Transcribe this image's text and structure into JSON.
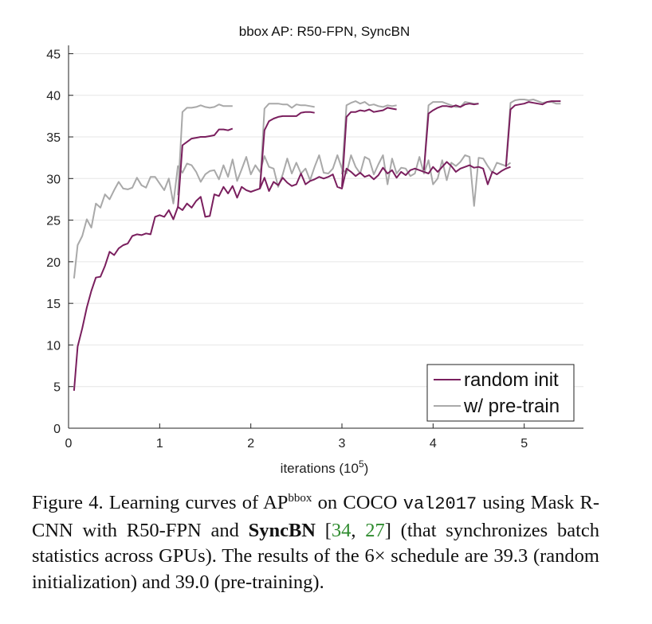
{
  "chart_data": {
    "type": "line",
    "title": "bbox AP: R50-FPN, SyncBN",
    "xlabel": "iterations (10",
    "xlabel_exp": "5",
    "xlabel_close": ")",
    "xlim": [
      0,
      5.65
    ],
    "ylim": [
      0,
      46
    ],
    "xticks": [
      0,
      1,
      2,
      3,
      4,
      5
    ],
    "yticks": [
      0,
      5,
      10,
      15,
      20,
      25,
      30,
      35,
      40,
      45
    ],
    "grid": "horizontal",
    "legend_position": "bottom-right",
    "series": [
      {
        "name": "random init",
        "color": "#7a1f5e",
        "segments": [
          {
            "x": [
              0.06,
              0.1,
              0.15,
              0.2,
              0.25,
              0.3,
              0.35,
              0.4,
              0.45,
              0.5,
              0.55,
              0.6,
              0.65,
              0.7,
              0.75,
              0.8,
              0.85,
              0.9,
              0.95,
              1.0,
              1.05,
              1.1,
              1.15,
              1.2,
              1.25,
              1.3,
              1.35,
              1.4,
              1.45,
              1.5,
              1.55,
              1.6,
              1.65,
              1.7,
              1.75,
              1.8,
              1.85,
              1.9,
              1.95,
              2.0,
              2.05,
              2.1,
              2.15,
              2.2,
              2.25,
              2.3,
              2.35,
              2.4,
              2.45,
              2.5,
              2.55,
              2.6,
              2.65,
              2.7,
              2.75,
              2.8,
              2.85,
              2.9,
              2.95,
              3.0,
              3.05,
              3.1,
              3.15,
              3.2,
              3.25,
              3.3,
              3.35,
              3.4,
              3.45,
              3.5,
              3.55,
              3.6,
              3.65,
              3.7,
              3.75,
              3.8,
              3.85,
              3.9,
              3.95,
              4.0,
              4.05,
              4.1,
              4.15,
              4.2,
              4.25,
              4.3,
              4.35,
              4.4,
              4.45,
              4.5,
              4.55,
              4.6,
              4.65,
              4.7,
              4.75,
              4.8,
              4.85
            ],
            "y": [
              4.5,
              9.8,
              12.0,
              14.5,
              16.5,
              18.1,
              18.2,
              19.5,
              21.2,
              20.8,
              21.6,
              22.0,
              22.2,
              23.1,
              23.3,
              23.2,
              23.4,
              23.3,
              25.4,
              25.6,
              25.4,
              26.2,
              25.1,
              26.6,
              26.2,
              27.0,
              26.5,
              27.3,
              27.8,
              25.4,
              25.5,
              28.1,
              27.9,
              29.0,
              28.2,
              29.1,
              27.7,
              29.0,
              28.6,
              28.4,
              28.6,
              28.8,
              30.1,
              28.5,
              29.6,
              29.2,
              30.1,
              29.5,
              29.1,
              29.3,
              30.6,
              29.3,
              29.7,
              29.9,
              30.2,
              30.0,
              30.2,
              30.5,
              29.0,
              28.8,
              31.2,
              30.8,
              30.3,
              30.7,
              30.2,
              30.4,
              29.9,
              30.4,
              31.3,
              30.6,
              31.0,
              30.1,
              30.8,
              30.4,
              31.0,
              31.2,
              31.0,
              30.8,
              30.6,
              31.4,
              30.8,
              31.4,
              32.0,
              31.5,
              30.8,
              31.2,
              31.4,
              31.6,
              31.3,
              31.4,
              31.2,
              29.3,
              30.8,
              30.5,
              30.9,
              31.2,
              31.4
            ]
          },
          {
            "x": [
              1.2,
              1.25,
              1.3,
              1.35,
              1.4,
              1.45,
              1.5,
              1.55,
              1.6,
              1.65,
              1.7,
              1.75,
              1.8
            ],
            "y": [
              26.5,
              34.0,
              34.4,
              34.8,
              34.9,
              35.0,
              35.0,
              35.1,
              35.2,
              35.9,
              35.9,
              35.8,
              36.0
            ]
          },
          {
            "x": [
              2.1,
              2.15,
              2.2,
              2.25,
              2.3,
              2.35,
              2.4,
              2.45,
              2.5,
              2.55,
              2.6,
              2.65,
              2.7
            ],
            "y": [
              28.8,
              35.8,
              36.9,
              37.2,
              37.4,
              37.5,
              37.5,
              37.5,
              37.5,
              37.9,
              38.0,
              38.0,
              37.9
            ]
          },
          {
            "x": [
              3.0,
              3.05,
              3.1,
              3.15,
              3.2,
              3.25,
              3.3,
              3.35,
              3.4,
              3.45,
              3.5,
              3.55,
              3.6
            ],
            "y": [
              29.0,
              37.4,
              38.0,
              38.0,
              38.2,
              38.1,
              38.3,
              38.0,
              38.1,
              38.2,
              38.5,
              38.4,
              38.3
            ]
          },
          {
            "x": [
              3.9,
              3.95,
              4.0,
              4.05,
              4.1,
              4.15,
              4.2,
              4.25,
              4.3,
              4.35,
              4.4,
              4.45,
              4.5
            ],
            "y": [
              31.0,
              37.8,
              38.2,
              38.5,
              38.7,
              38.7,
              38.6,
              38.8,
              38.6,
              38.9,
              39.0,
              38.9,
              39.0
            ]
          },
          {
            "x": [
              4.8,
              4.85,
              4.9,
              4.95,
              5.0,
              5.05,
              5.1,
              5.15,
              5.2,
              5.25,
              5.3,
              5.35,
              5.4
            ],
            "y": [
              31.4,
              38.3,
              38.8,
              38.9,
              39.0,
              39.2,
              39.1,
              39.0,
              38.9,
              39.2,
              39.3,
              39.3,
              39.3
            ]
          }
        ]
      },
      {
        "name": "w/ pre-train",
        "color": "#a9a9a9",
        "segments": [
          {
            "x": [
              0.06,
              0.1,
              0.15,
              0.2,
              0.25,
              0.3,
              0.35,
              0.4,
              0.45,
              0.5,
              0.55,
              0.6,
              0.65,
              0.7,
              0.75,
              0.8,
              0.85,
              0.9,
              0.95,
              1.0,
              1.05,
              1.1,
              1.15,
              1.2,
              1.25,
              1.3,
              1.35,
              1.4,
              1.45,
              1.5,
              1.55,
              1.6,
              1.65,
              1.7,
              1.75,
              1.8,
              1.85,
              1.9,
              1.95,
              2.0,
              2.05,
              2.1,
              2.15,
              2.2,
              2.25,
              2.3,
              2.35,
              2.4,
              2.45,
              2.5,
              2.55,
              2.6,
              2.65,
              2.7,
              2.75,
              2.8,
              2.85,
              2.9,
              2.95,
              3.0,
              3.05,
              3.1,
              3.15,
              3.2,
              3.25,
              3.3,
              3.35,
              3.4,
              3.45,
              3.5,
              3.55,
              3.6,
              3.65,
              3.7,
              3.75,
              3.8,
              3.85,
              3.9,
              3.95,
              4.0,
              4.05,
              4.1,
              4.15,
              4.2,
              4.25,
              4.3,
              4.35,
              4.4,
              4.45,
              4.5,
              4.55,
              4.6,
              4.65,
              4.7,
              4.75,
              4.8,
              4.85
            ],
            "y": [
              18.0,
              22.0,
              23.1,
              25.1,
              24.1,
              27.0,
              26.5,
              28.1,
              27.5,
              28.6,
              29.6,
              28.8,
              28.7,
              28.9,
              30.1,
              29.2,
              28.9,
              30.2,
              30.2,
              29.4,
              28.6,
              30.0,
              27.0,
              31.5,
              30.7,
              31.8,
              31.6,
              30.8,
              29.6,
              30.5,
              30.9,
              31.0,
              29.9,
              31.6,
              30.2,
              32.3,
              29.7,
              31.1,
              32.6,
              30.5,
              31.6,
              30.8,
              32.7,
              31.4,
              31.2,
              29.0,
              30.5,
              32.4,
              30.6,
              31.9,
              30.6,
              31.2,
              29.8,
              31.4,
              32.8,
              30.7,
              30.6,
              31.2,
              32.8,
              31.2,
              30.6,
              32.8,
              31.4,
              30.6,
              32.6,
              32.3,
              30.5,
              31.7,
              32.8,
              29.3,
              32.4,
              30.6,
              31.3,
              31.2,
              30.3,
              30.6,
              32.6,
              30.6,
              32.2,
              29.3,
              30.0,
              32.2,
              29.8,
              31.9,
              31.5,
              32.0,
              32.8,
              32.6,
              26.7,
              32.5,
              32.4,
              31.5,
              30.7,
              31.9,
              31.7,
              31.5,
              31.9
            ]
          },
          {
            "x": [
              1.2,
              1.25,
              1.3,
              1.35,
              1.4,
              1.45,
              1.5,
              1.55,
              1.6,
              1.65,
              1.7,
              1.75,
              1.8
            ],
            "y": [
              28.0,
              38.0,
              38.5,
              38.5,
              38.6,
              38.8,
              38.6,
              38.5,
              38.6,
              38.9,
              38.7,
              38.7,
              38.7
            ]
          },
          {
            "x": [
              2.1,
              2.15,
              2.2,
              2.25,
              2.3,
              2.35,
              2.4,
              2.45,
              2.5,
              2.55,
              2.6,
              2.65,
              2.7
            ],
            "y": [
              28.8,
              38.4,
              39.0,
              39.0,
              39.0,
              38.9,
              38.9,
              38.5,
              38.9,
              38.8,
              38.8,
              38.7,
              38.6
            ]
          },
          {
            "x": [
              3.0,
              3.05,
              3.1,
              3.15,
              3.2,
              3.25,
              3.3,
              3.35,
              3.4,
              3.45,
              3.5,
              3.55,
              3.6
            ],
            "y": [
              30.5,
              38.8,
              39.1,
              39.3,
              39.0,
              39.2,
              38.8,
              38.9,
              38.7,
              38.6,
              38.8,
              38.7,
              38.8
            ]
          },
          {
            "x": [
              3.9,
              3.95,
              4.0,
              4.05,
              4.1,
              4.15,
              4.2,
              4.25,
              4.3,
              4.35,
              4.4,
              4.45,
              4.5
            ],
            "y": [
              31.0,
              38.8,
              39.2,
              39.2,
              39.2,
              39.0,
              38.8,
              38.6,
              38.6,
              39.2,
              39.1,
              39.0,
              39.0
            ]
          },
          {
            "x": [
              4.8,
              4.85,
              4.9,
              4.95,
              5.0,
              5.05,
              5.1,
              5.15,
              5.2,
              5.25,
              5.3,
              5.35,
              5.4
            ],
            "y": [
              31.6,
              39.1,
              39.4,
              39.5,
              39.5,
              39.4,
              39.5,
              39.3,
              39.1,
              39.2,
              39.2,
              39.0,
              39.0
            ]
          }
        ]
      }
    ]
  },
  "caption": {
    "t1": "Figure 4. Learning curves of AP",
    "sup": "bbox",
    "t2": " on COCO ",
    "mono": "val2017",
    "t3": " using Mask R-CNN with R50-FPN and ",
    "bold": "SyncBN",
    "t4": " [",
    "cite1": "34",
    "t5": ", ",
    "cite2": "27",
    "t6": "] (that synchronizes batch statistics across GPUs). The results of the 6× schedule are 39.3 (random initialization) and 39.0 (pre-training)."
  }
}
